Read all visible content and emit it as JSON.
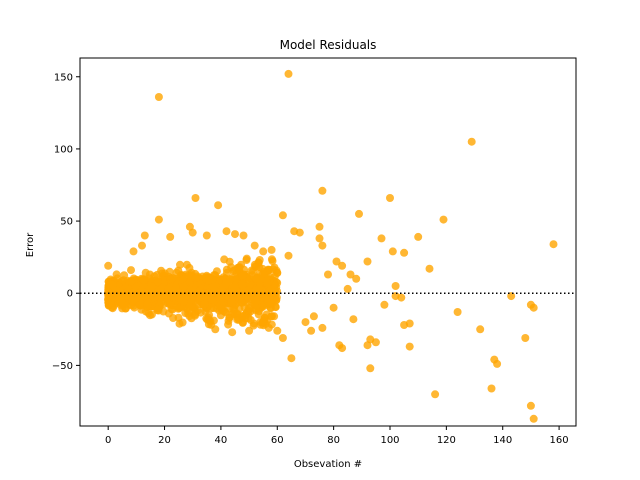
{
  "chart_data": {
    "type": "scatter",
    "title": "Model Residuals",
    "xlabel": "Obsevation #",
    "ylabel": "Error",
    "xlim": [
      -10,
      166
    ],
    "ylim": [
      -92,
      163
    ],
    "xticks": [
      0,
      20,
      40,
      60,
      80,
      100,
      120,
      140,
      160
    ],
    "yticks": [
      -50,
      0,
      50,
      100,
      150
    ],
    "grid": false,
    "legend": "none",
    "marker_color": "#FFA500",
    "reference_line": {
      "y": 0,
      "style": "dotted",
      "color": "#000000"
    },
    "dense_cluster": {
      "description_x_range": [
        0,
        60
      ],
      "center_y": 0
    },
    "points": [
      {
        "x": 64,
        "y": 152
      },
      {
        "x": 18,
        "y": 136
      },
      {
        "x": 129,
        "y": 105
      },
      {
        "x": 76,
        "y": 71
      },
      {
        "x": 31,
        "y": 66
      },
      {
        "x": 100,
        "y": 66
      },
      {
        "x": 39,
        "y": 61
      },
      {
        "x": 89,
        "y": 55
      },
      {
        "x": 62,
        "y": 54
      },
      {
        "x": 119,
        "y": 51
      },
      {
        "x": 18,
        "y": 51
      },
      {
        "x": 29,
        "y": 46
      },
      {
        "x": 75,
        "y": 46
      },
      {
        "x": 66,
        "y": 43
      },
      {
        "x": 68,
        "y": 42
      },
      {
        "x": 110,
        "y": 39
      },
      {
        "x": 97,
        "y": 38
      },
      {
        "x": 75,
        "y": 38
      },
      {
        "x": 158,
        "y": 34
      },
      {
        "x": 76,
        "y": 33
      },
      {
        "x": 101,
        "y": 29
      },
      {
        "x": 105,
        "y": 28
      },
      {
        "x": 55,
        "y": 29
      },
      {
        "x": 64,
        "y": 26
      },
      {
        "x": 81,
        "y": 22
      },
      {
        "x": 92,
        "y": 22
      },
      {
        "x": 83,
        "y": 19
      },
      {
        "x": 114,
        "y": 17
      },
      {
        "x": 78,
        "y": 13
      },
      {
        "x": 86,
        "y": 13
      },
      {
        "x": 88,
        "y": 10
      },
      {
        "x": 102,
        "y": 5
      },
      {
        "x": 85,
        "y": 3
      },
      {
        "x": 102,
        "y": -2
      },
      {
        "x": 143,
        "y": -2
      },
      {
        "x": 104,
        "y": -3
      },
      {
        "x": 98,
        "y": -8
      },
      {
        "x": 150,
        "y": -8
      },
      {
        "x": 151,
        "y": -10
      },
      {
        "x": 80,
        "y": -10
      },
      {
        "x": 124,
        "y": -13
      },
      {
        "x": 87,
        "y": -18
      },
      {
        "x": 107,
        "y": -21
      },
      {
        "x": 105,
        "y": -22
      },
      {
        "x": 76,
        "y": -24
      },
      {
        "x": 132,
        "y": -25
      },
      {
        "x": 148,
        "y": -31
      },
      {
        "x": 93,
        "y": -32
      },
      {
        "x": 95,
        "y": -34
      },
      {
        "x": 82,
        "y": -36
      },
      {
        "x": 83,
        "y": -38
      },
      {
        "x": 107,
        "y": -37
      },
      {
        "x": 92,
        "y": -36
      },
      {
        "x": 65,
        "y": -45
      },
      {
        "x": 137,
        "y": -46
      },
      {
        "x": 138,
        "y": -49
      },
      {
        "x": 93,
        "y": -52
      },
      {
        "x": 136,
        "y": -66
      },
      {
        "x": 116,
        "y": -70
      },
      {
        "x": 150,
        "y": -78
      },
      {
        "x": 151,
        "y": -87
      },
      {
        "x": 13,
        "y": 40
      },
      {
        "x": 12,
        "y": 33
      },
      {
        "x": 22,
        "y": 39
      },
      {
        "x": 30,
        "y": 42
      },
      {
        "x": 42,
        "y": 43
      },
      {
        "x": 45,
        "y": 41
      },
      {
        "x": 48,
        "y": 40
      },
      {
        "x": 52,
        "y": 33
      },
      {
        "x": 9,
        "y": 29
      },
      {
        "x": 35,
        "y": 40
      },
      {
        "x": 58,
        "y": 30
      },
      {
        "x": 0,
        "y": 19
      },
      {
        "x": 60,
        "y": 14
      },
      {
        "x": 57,
        "y": -24
      },
      {
        "x": 60,
        "y": -26
      },
      {
        "x": 62,
        "y": -31
      },
      {
        "x": 72,
        "y": -26
      },
      {
        "x": 70,
        "y": -20
      },
      {
        "x": 73,
        "y": -16
      },
      {
        "x": 44,
        "y": -27
      },
      {
        "x": 50,
        "y": -26
      },
      {
        "x": 38,
        "y": -25
      },
      {
        "x": 54,
        "y": -20
      }
    ]
  }
}
